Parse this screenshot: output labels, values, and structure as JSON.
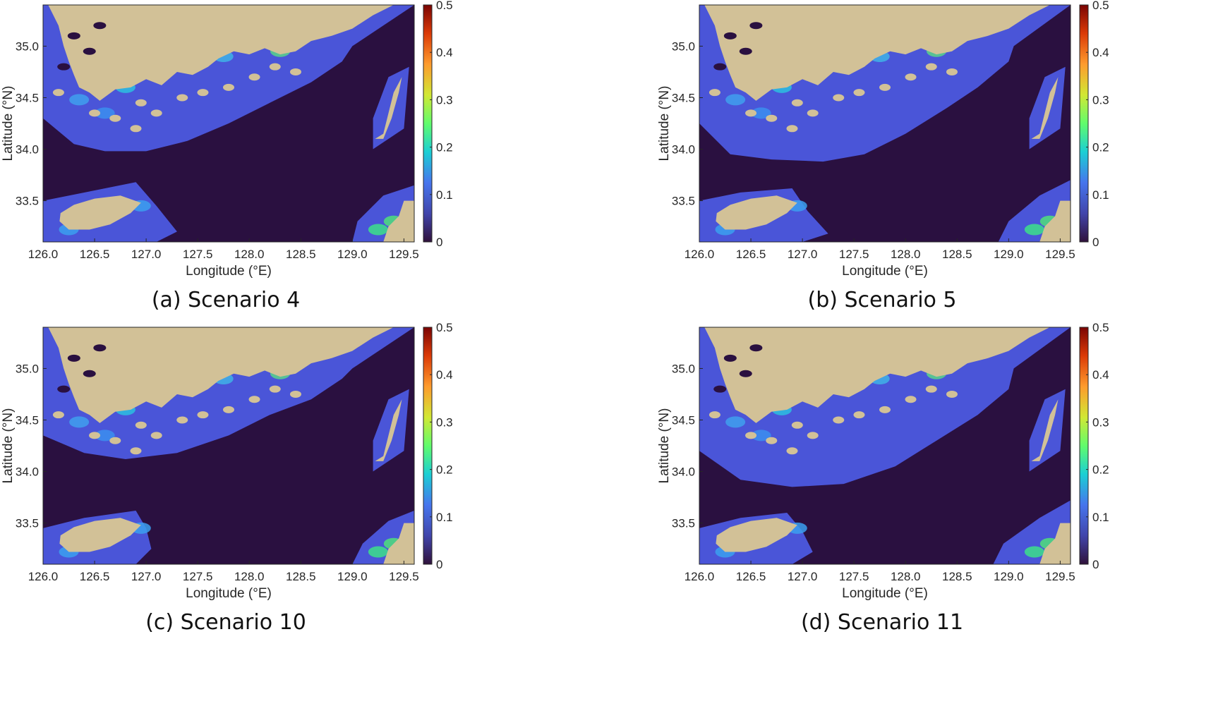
{
  "panels": [
    {
      "caption": "(a) Scenario 4",
      "variant": 0
    },
    {
      "caption": "(b) Scenario 5",
      "variant": 1
    },
    {
      "caption": "(c) Scenario 10",
      "variant": 2
    },
    {
      "caption": "(d) Scenario 11",
      "variant": 3
    }
  ],
  "axes": {
    "xlabel": "Longitude (°E)",
    "ylabel": "Latitude (°N)",
    "xlim": [
      126.0,
      129.6
    ],
    "ylim": [
      33.1,
      35.4
    ],
    "xticks": [
      "126.0",
      "126.5",
      "127.0",
      "127.5",
      "128.0",
      "128.5",
      "129.0",
      "129.5"
    ],
    "yticks": [
      "35.0",
      "34.5",
      "34.0",
      "33.5"
    ]
  },
  "colorbar": {
    "range": [
      0,
      0.5
    ],
    "ticks": [
      "0",
      "0.1",
      "0.2",
      "0.3",
      "0.4",
      "0.5"
    ],
    "colormap": "jet"
  },
  "colors": {
    "sea_background": "#2a1040",
    "land": "#d2c197",
    "low_concentration": "#4a55d8"
  }
}
